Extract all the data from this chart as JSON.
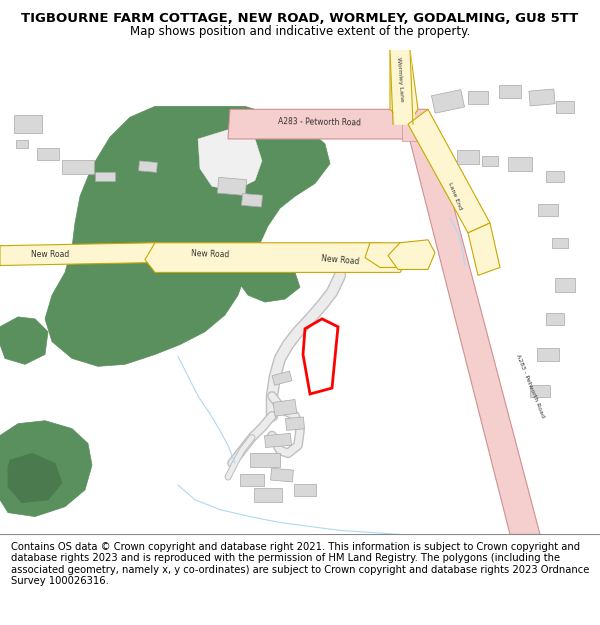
{
  "title_line1": "TIGBOURNE FARM COTTAGE, NEW ROAD, WORMLEY, GODALMING, GU8 5TT",
  "title_line2": "Map shows position and indicative extent of the property.",
  "footer_text": "Contains OS data © Crown copyright and database right 2021. This information is subject to Crown copyright and database rights 2023 and is reproduced with the permission of HM Land Registry. The polygons (including the associated geometry, namely x, y co-ordinates) are subject to Crown copyright and database rights 2023 Ordnance Survey 100026316.",
  "bg_color": "#ffffff",
  "map_bg": "#ffffff",
  "footer_bg": "#ffffff",
  "green_color": "#5a8f5e",
  "road_yellow_fill": "#fdf6d0",
  "road_yellow_border": "#c8a800",
  "road_pink_fill": "#f5cece",
  "road_pink_border": "#d09090",
  "building_color": "#d8d8d8",
  "building_border": "#a8a8a8",
  "red_polygon": "#ff0000",
  "water_color": "#b0d8f0",
  "path_color": "#d8d8d8",
  "path_border": "#c0c0c0",
  "text_color": "#333333",
  "label_fontsize": 5.5,
  "title_fontsize": 9.5,
  "subtitle_fontsize": 8.5,
  "footer_fontsize": 7.2
}
